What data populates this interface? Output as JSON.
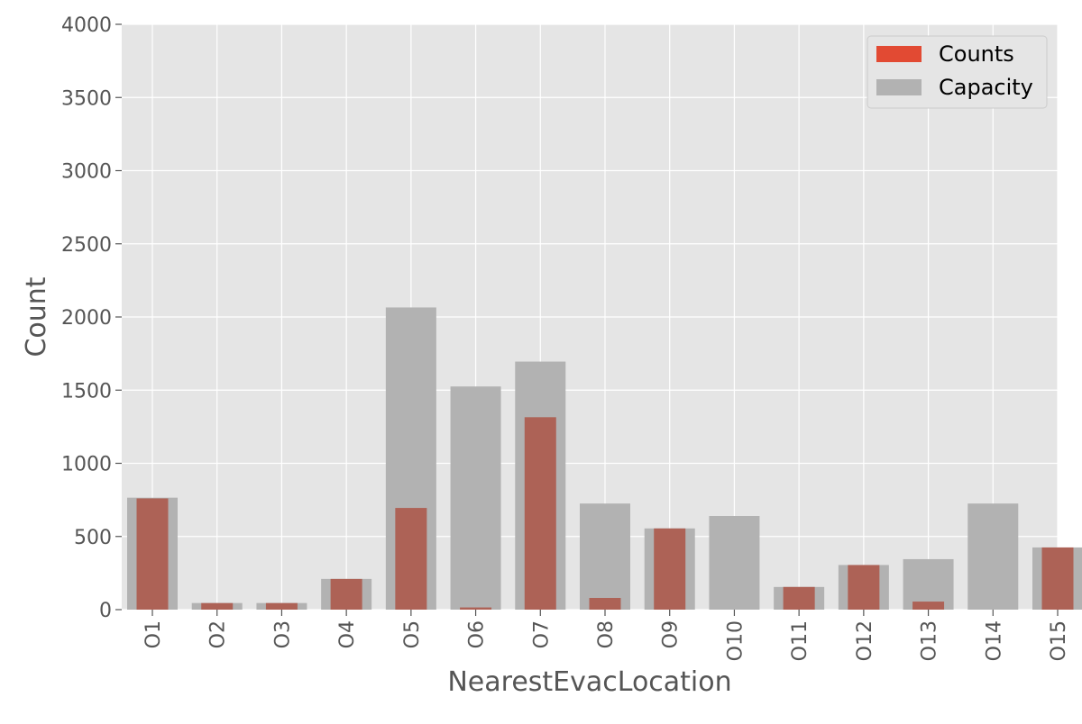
{
  "chart_data": {
    "type": "bar",
    "title": "",
    "xlabel": "NearestEvacLocation",
    "ylabel": "Count",
    "ylim": [
      0,
      4000
    ],
    "yticks": [
      0,
      500,
      1000,
      1500,
      2000,
      2500,
      3000,
      3500,
      4000
    ],
    "grid": true,
    "legend_position": "top-right",
    "categories": [
      "O1",
      "O2",
      "O3",
      "O4",
      "O5",
      "O6",
      "O7",
      "O8",
      "O9",
      "O10",
      "O11",
      "O12",
      "O13",
      "O14",
      "O15"
    ],
    "series": [
      {
        "name": "Counts",
        "color": "#E24A33",
        "bar_fill": "#AD6256",
        "values": [
          760,
          45,
          45,
          210,
          695,
          15,
          1315,
          80,
          555,
          0,
          155,
          305,
          55,
          0,
          425
        ]
      },
      {
        "name": "Capacity",
        "color": "#B2B2B2",
        "bar_fill": "#B2B2B2",
        "values": [
          765,
          45,
          45,
          210,
          2065,
          1525,
          1695,
          725,
          555,
          640,
          155,
          305,
          345,
          725,
          425
        ]
      }
    ]
  },
  "colors": {
    "plot_background": "#E5E5E5",
    "grid": "#FFFFFF",
    "text": "#555555"
  }
}
